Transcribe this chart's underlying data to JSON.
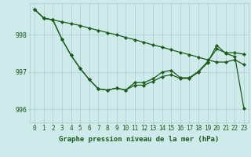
{
  "xlabel": "Graphe pression niveau de la mer (hPa)",
  "ylim": [
    995.65,
    998.85
  ],
  "xlim": [
    -0.5,
    23.5
  ],
  "yticks": [
    996,
    997,
    998
  ],
  "xticks": [
    0,
    1,
    2,
    3,
    4,
    5,
    6,
    7,
    8,
    9,
    10,
    11,
    12,
    13,
    14,
    15,
    16,
    17,
    18,
    19,
    20,
    21,
    22,
    23
  ],
  "bg_color": "#ceeaea",
  "grid_color": "#aacccc",
  "line_color": "#1a5c1a",
  "line1": [
    998.68,
    998.45,
    998.4,
    998.35,
    998.3,
    998.25,
    998.18,
    998.12,
    998.06,
    998.0,
    997.93,
    997.87,
    997.8,
    997.73,
    997.67,
    997.6,
    997.53,
    997.47,
    997.4,
    997.33,
    997.27,
    997.27,
    997.33,
    997.2
  ],
  "line2": [
    998.68,
    998.45,
    998.4,
    997.88,
    997.45,
    997.1,
    996.8,
    996.55,
    996.52,
    996.57,
    996.52,
    996.72,
    996.72,
    996.82,
    997.0,
    997.05,
    996.85,
    996.85,
    997.02,
    997.28,
    997.62,
    997.52,
    997.52,
    997.48
  ],
  "line3": [
    998.68,
    998.45,
    998.4,
    997.88,
    997.45,
    997.1,
    996.8,
    996.55,
    996.52,
    996.57,
    996.52,
    996.65,
    996.65,
    996.75,
    996.88,
    996.93,
    996.83,
    996.83,
    997.0,
    997.25,
    997.72,
    997.5,
    997.42,
    996.02
  ],
  "font_color": "#1a5c1a",
  "xlabel_fontsize": 6.5,
  "tick_fontsize": 5.5,
  "lw": 0.9,
  "markersize": 2.2
}
